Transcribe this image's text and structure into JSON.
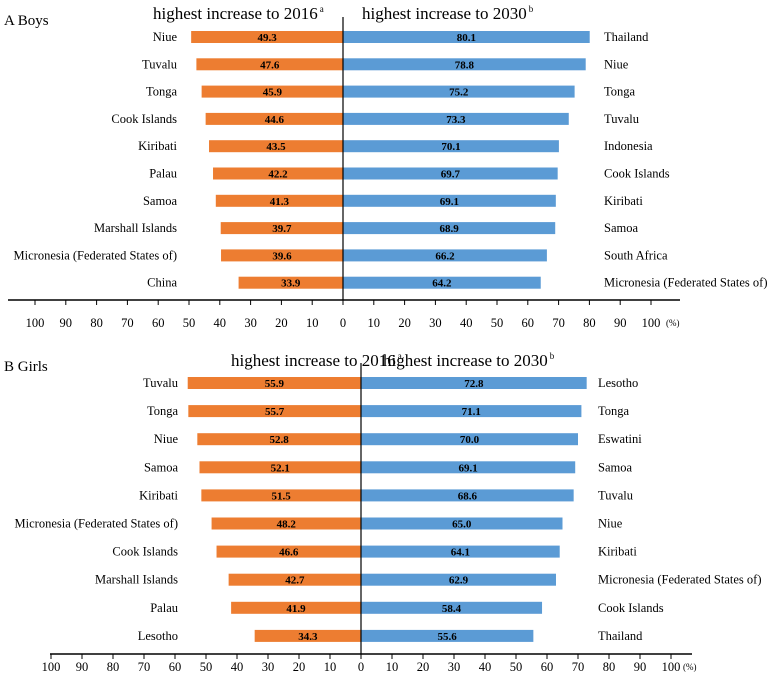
{
  "colors": {
    "left_bar": "#ED7D31",
    "right_bar": "#5B9BD5",
    "axis": "#000000"
  },
  "chart_data": [
    {
      "type": "bar",
      "orientation": "horizontal-diverging",
      "panel_label": "A Boys",
      "left_heading": "highest increase to 2016",
      "left_heading_sup": "a",
      "right_heading": "highest increase to 2030",
      "right_heading_sup": "b",
      "unit_label": "(%)",
      "xlim": [
        0,
        100
      ],
      "tick_labels_left": [
        "100",
        "90",
        "80",
        "70",
        "60",
        "50",
        "40",
        "30",
        "20",
        "10"
      ],
      "tick_labels_right": [
        "0",
        "10",
        "20",
        "30",
        "40",
        "50",
        "60",
        "70",
        "80",
        "90",
        "100"
      ],
      "left_series": {
        "name": "highest increase to 2016",
        "categories": [
          "Niue",
          "Tuvalu",
          "Tonga",
          "Cook Islands",
          "Kiribati",
          "Palau",
          "Samoa",
          "Marshall Islands",
          "Micronesia (Federated States of)",
          "China"
        ],
        "values": [
          49.3,
          47.6,
          45.9,
          44.6,
          43.5,
          42.2,
          41.3,
          39.7,
          39.6,
          33.9
        ],
        "value_labels": [
          "49.3",
          "47.6",
          "45.9",
          "44.6",
          "43.5",
          "42.2",
          "41.3",
          "39.7",
          "39.6",
          "33.9"
        ]
      },
      "right_series": {
        "name": "highest increase to 2030",
        "categories": [
          "Thailand",
          "Niue",
          "Tonga",
          "Tuvalu",
          "Indonesia",
          "Cook Islands",
          "Kiribati",
          "Samoa",
          "South Africa",
          "Micronesia (Federated States of)"
        ],
        "values": [
          80.1,
          78.8,
          75.2,
          73.3,
          70.1,
          69.7,
          69.1,
          68.9,
          66.2,
          64.2
        ],
        "value_labels": [
          "80.1",
          "78.8",
          "75.2",
          "73.3",
          "70.1",
          "69.7",
          "69.1",
          "68.9",
          "66.2",
          "64.2"
        ]
      }
    },
    {
      "type": "bar",
      "orientation": "horizontal-diverging",
      "panel_label": "B Girls",
      "left_heading": "highest increase to 2016",
      "left_heading_sup": "a",
      "right_heading": "highest increase to 2030",
      "right_heading_sup": "b",
      "unit_label": "(%)",
      "xlim": [
        0,
        100
      ],
      "tick_labels_left": [
        "100",
        "90",
        "80",
        "70",
        "60",
        "50",
        "40",
        "30",
        "20",
        "10"
      ],
      "tick_labels_right": [
        "0",
        "10",
        "20",
        "30",
        "40",
        "50",
        "60",
        "70",
        "80",
        "90",
        "100"
      ],
      "left_series": {
        "name": "highest increase to 2016",
        "categories": [
          "Tuvalu",
          "Tonga",
          "Niue",
          "Samoa",
          "Kiribati",
          "Micronesia (Federated States of)",
          "Cook Islands",
          "Marshall Islands",
          "Palau",
          "Lesotho"
        ],
        "values": [
          55.9,
          55.7,
          52.8,
          52.1,
          51.5,
          48.2,
          46.6,
          42.7,
          41.9,
          34.3
        ],
        "value_labels": [
          "55.9",
          "55.7",
          "52.8",
          "52.1",
          "51.5",
          "48.2",
          "46.6",
          "42.7",
          "41.9",
          "34.3"
        ]
      },
      "right_series": {
        "name": "highest increase to 2030",
        "categories": [
          "Lesotho",
          "Tonga",
          "Eswatini",
          "Samoa",
          "Tuvalu",
          "Niue",
          "Kiribati",
          "Micronesia (Federated States of)",
          "Cook Islands",
          "Thailand"
        ],
        "values": [
          72.8,
          71.1,
          70.0,
          69.1,
          68.6,
          65.0,
          64.1,
          62.9,
          58.4,
          55.6
        ],
        "value_labels": [
          "72.8",
          "71.1",
          "70.0",
          "69.1",
          "68.6",
          "65.0",
          "64.1",
          "62.9",
          "58.4",
          "55.6"
        ]
      }
    }
  ]
}
